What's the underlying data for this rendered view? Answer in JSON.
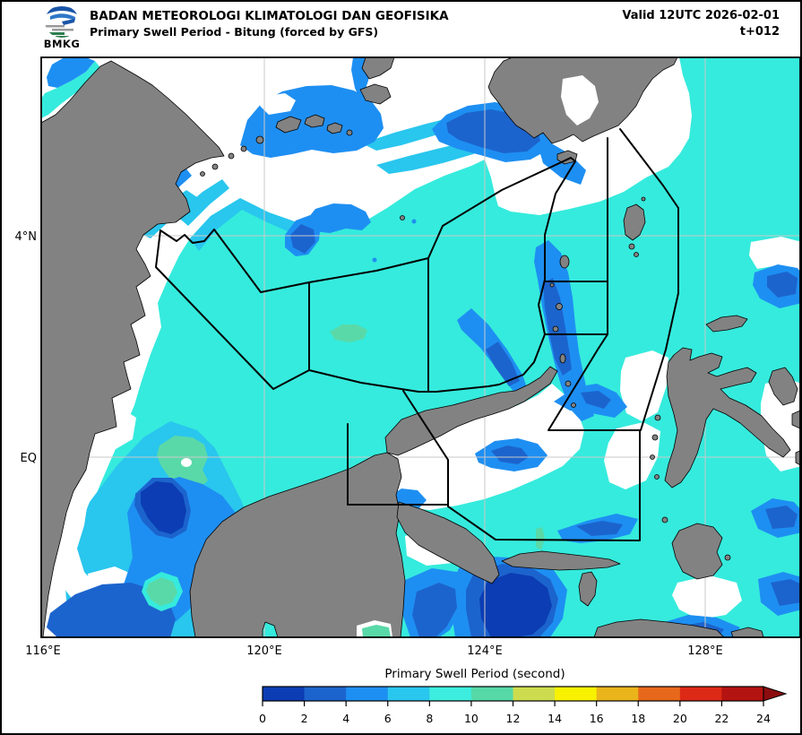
{
  "header": {
    "logo_label": "BMKG",
    "agency_title": "BADAN METEOROLOGI KLIMATOLOGI DAN GEOFISIKA",
    "product_title": "Primary Swell Period - Bitung (forced by GFS)",
    "valid_label": "Valid 12UTC 2026-02-01",
    "tstep_label": "t+012"
  },
  "map": {
    "x_tick_labels": [
      "116°E",
      "120°E",
      "124°E",
      "128°E"
    ],
    "y_tick_labels": [
      "4°N",
      "EQ"
    ],
    "land_color": "#828282",
    "no_data_color": "#ffffff",
    "gridline_color": "#c9c9c9",
    "zone_boundary_color": "#000000",
    "field_colors": {
      "period_0_2": "#0c3db4",
      "period_2_4": "#1c64cd",
      "period_4_6": "#1e8ff2",
      "period_6_8": "#29c6ee",
      "period_8_10": "#35ebdd",
      "period_10_12": "#5ad9a8"
    }
  },
  "colorbar": {
    "title": "Primary Swell Period (second)",
    "units": "second",
    "min": 0,
    "max": 24,
    "step": 2,
    "tick_labels": [
      "0",
      "2",
      "4",
      "6",
      "8",
      "10",
      "12",
      "14",
      "16",
      "18",
      "20",
      "22",
      "24"
    ],
    "segment_colors": [
      "#0c3db4",
      "#1c64cd",
      "#1e8ff2",
      "#29c6ee",
      "#3dedde",
      "#56d9a7",
      "#ccdc4e",
      "#f8f100",
      "#eab41b",
      "#e8681b",
      "#dd2a16",
      "#b31311"
    ],
    "arrow_color": "#8c0d10"
  }
}
